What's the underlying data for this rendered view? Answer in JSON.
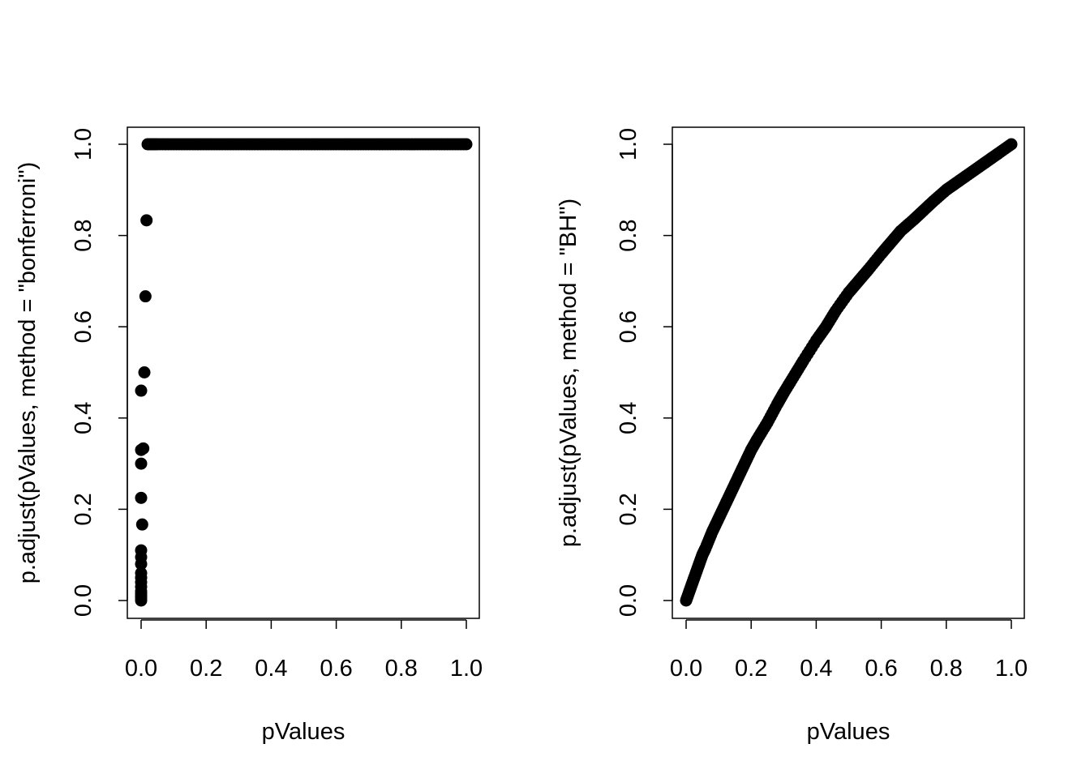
{
  "chart_data": [
    {
      "type": "scatter",
      "title": "",
      "xlabel": "pValues",
      "ylabel": "p.adjust(pValues, method = \"bonferroni\")",
      "xlim": [
        0,
        1
      ],
      "ylim": [
        0,
        1
      ],
      "x_ticks": [
        "0.0",
        "0.2",
        "0.4",
        "0.6",
        "0.8",
        "1.0"
      ],
      "y_ticks": [
        "0.0",
        "0.2",
        "0.4",
        "0.6",
        "0.8",
        "1.0"
      ],
      "grid": false,
      "series": [
        {
          "description_points": "nearly all p-values map to 1.0; a cluster of tiny p-values near x=0 keeps small adjusted values",
          "x": [
            0,
            0,
            0,
            0,
            0,
            0,
            0,
            0,
            0,
            0,
            0,
            0,
            0,
            0,
            0,
            0,
            0.02,
            0.05,
            0.1,
            0.15,
            0.2,
            0.25,
            0.3,
            0.35,
            0.4,
            0.45,
            0.5,
            0.55,
            0.6,
            0.65,
            0.7,
            0.75,
            0.8,
            0.85,
            0.9,
            0.95,
            1.0
          ],
          "y": [
            0.46,
            0.33,
            0.3,
            0.225,
            0.11,
            0.095,
            0.08,
            0.06,
            0.05,
            0.04,
            0.03,
            0.02,
            0.015,
            0.01,
            0.005,
            0.0,
            1,
            1,
            1,
            1,
            1,
            1,
            1,
            1,
            1,
            1,
            1,
            1,
            1,
            1,
            1,
            1,
            1,
            1,
            1,
            1,
            1
          ]
        }
      ]
    },
    {
      "type": "scatter",
      "title": "",
      "xlabel": "pValues",
      "ylabel": "p.adjust(pValues, method = \"BH\")",
      "xlim": [
        0,
        1
      ],
      "ylim": [
        0,
        1
      ],
      "x_ticks": [
        "0.0",
        "0.2",
        "0.4",
        "0.6",
        "0.8",
        "1.0"
      ],
      "y_ticks": [
        "0.0",
        "0.2",
        "0.4",
        "0.6",
        "0.8",
        "1.0"
      ],
      "grid": false,
      "series": [
        {
          "x": [
            0.0,
            0.01,
            0.02,
            0.03,
            0.04,
            0.05,
            0.06,
            0.08,
            0.1,
            0.12,
            0.14,
            0.16,
            0.18,
            0.2,
            0.22,
            0.25,
            0.28,
            0.3,
            0.33,
            0.36,
            0.4,
            0.43,
            0.46,
            0.5,
            0.53,
            0.56,
            0.6,
            0.63,
            0.66,
            0.7,
            0.73,
            0.76,
            0.8,
            0.83,
            0.86,
            0.9,
            0.93,
            0.96,
            1.0
          ],
          "y": [
            0.0,
            0.02,
            0.04,
            0.06,
            0.08,
            0.1,
            0.115,
            0.15,
            0.18,
            0.21,
            0.24,
            0.27,
            0.3,
            0.33,
            0.355,
            0.39,
            0.43,
            0.455,
            0.49,
            0.525,
            0.57,
            0.6,
            0.635,
            0.675,
            0.7,
            0.725,
            0.76,
            0.785,
            0.81,
            0.835,
            0.855,
            0.875,
            0.9,
            0.915,
            0.93,
            0.95,
            0.965,
            0.98,
            1.0
          ]
        }
      ]
    }
  ]
}
